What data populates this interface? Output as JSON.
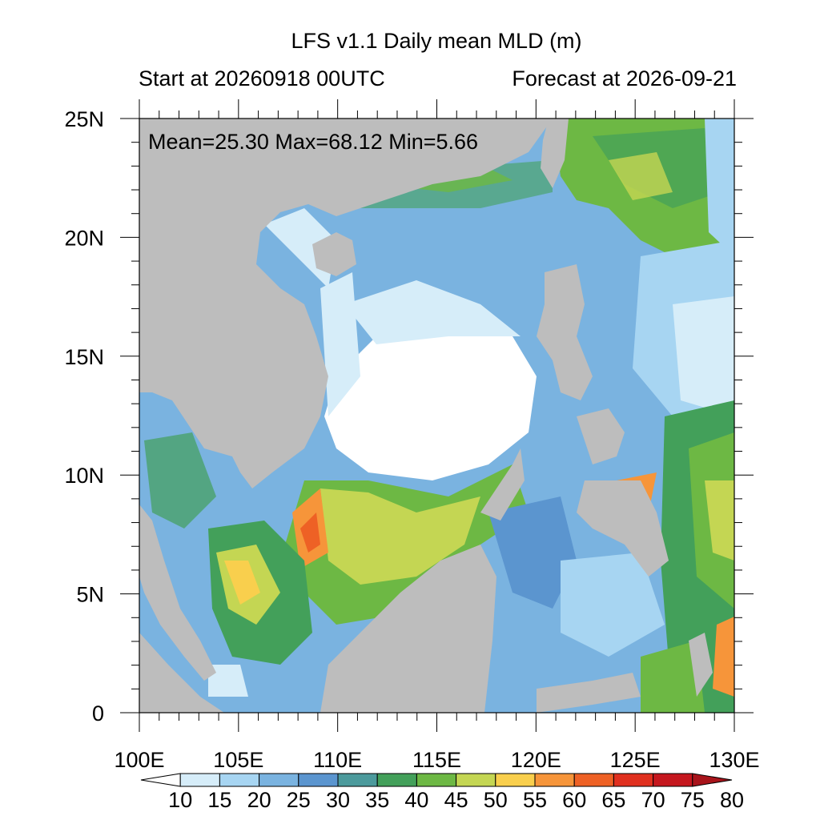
{
  "header": {
    "title": "LFS v1.1 Daily mean MLD (m)",
    "start": "Start at 20260918 00UTC",
    "forecast": "Forecast at 2026-09-21"
  },
  "stats": {
    "text": "Mean=25.30  Max=68.12  Min=5.66"
  },
  "map": {
    "lon_range": [
      100,
      130
    ],
    "lat_range": [
      0,
      25
    ],
    "lon_ticks": [
      {
        "value": 100,
        "label": "100E"
      },
      {
        "value": 105,
        "label": "105E"
      },
      {
        "value": 110,
        "label": "110E"
      },
      {
        "value": 115,
        "label": "115E"
      },
      {
        "value": 120,
        "label": "120E"
      },
      {
        "value": 125,
        "label": "125E"
      },
      {
        "value": 130,
        "label": "130E"
      }
    ],
    "lat_ticks": [
      {
        "value": 0,
        "label": "0"
      },
      {
        "value": 5,
        "label": "5N"
      },
      {
        "value": 10,
        "label": "10N"
      },
      {
        "value": 15,
        "label": "15N"
      },
      {
        "value": 20,
        "label": "20N"
      },
      {
        "value": 25,
        "label": "25N"
      }
    ],
    "land_color": "#bdbdbd"
  },
  "colorbar": {
    "levels": [
      "10",
      "15",
      "20",
      "25",
      "30",
      "35",
      "40",
      "45",
      "50",
      "55",
      "60",
      "65",
      "70",
      "75",
      "80"
    ],
    "colors": [
      "#ffffff",
      "#d6edf9",
      "#a7d5f2",
      "#7ab3e0",
      "#5b95cf",
      "#4c9a9c",
      "#43a05a",
      "#6db844",
      "#c4d653",
      "#f9cf4d",
      "#f6953a",
      "#ee6125",
      "#e0301f",
      "#c5171e",
      "#a8141b"
    ]
  }
}
